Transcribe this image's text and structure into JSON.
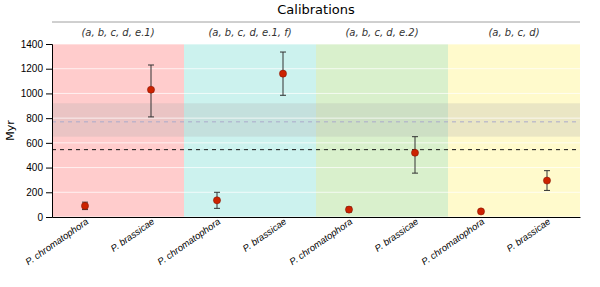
{
  "chart_data": {
    "type": "scatter",
    "title": "Calibrations",
    "ylabel": "Myr",
    "ylim": [
      0,
      1400
    ],
    "yticks": [
      0,
      200,
      400,
      600,
      800,
      1000,
      1200,
      1400
    ],
    "grid": true,
    "color": "#cc2200",
    "marker": "circle",
    "groups": [
      {
        "label": "(a, b, c, d, e.1)",
        "color": "#ffcccc",
        "categories": [
          "P. chromatophora",
          "P. brassicae"
        ],
        "values": [
          90,
          1030
        ],
        "error_low": [
          30,
          220
        ],
        "error_high": [
          30,
          200
        ]
      },
      {
        "label": "(a, b, c, d, e.1, f)",
        "color": "#ccf2ee",
        "categories": [
          "P. chromatophora",
          "P. brassicae"
        ],
        "values": [
          135,
          1160
        ],
        "error_low": [
          65,
          175
        ],
        "error_high": [
          65,
          175
        ]
      },
      {
        "label": "(a, b, c, d, e.2)",
        "color": "#d9f0cc",
        "categories": [
          "P. chromatophora",
          "P. brassicae"
        ],
        "values": [
          60,
          520
        ],
        "error_low": [
          20,
          165
        ],
        "error_high": [
          20,
          130
        ]
      },
      {
        "label": "(a, b, c, d)",
        "color": "#fffacc",
        "categories": [
          "P. chromatophora",
          "P. brassicae"
        ],
        "values": [
          45,
          295
        ],
        "error_low": [
          15,
          80
        ],
        "error_high": [
          15,
          80
        ]
      }
    ],
    "bands": [
      {
        "from": 650,
        "to": 920,
        "color": "#aaaaaa"
      }
    ],
    "reference_lines": [
      {
        "value": 545,
        "color": "#111111",
        "line_style": "dashed"
      },
      {
        "value": 770,
        "color": "#aaaacc",
        "line_style": "dashed"
      }
    ]
  }
}
